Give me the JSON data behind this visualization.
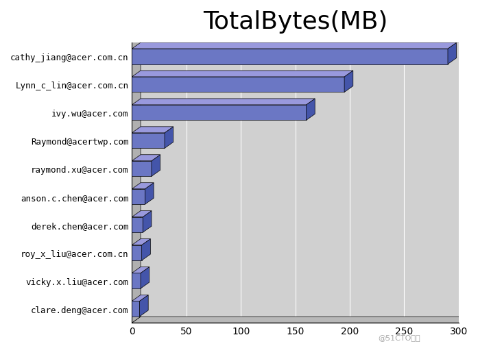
{
  "title": "TotalBytes(MB)",
  "categories": [
    "cathy_jiang@acer.com.cn",
    "Lynn_c_lin@acer.com.cn",
    "ivy.wu@acer.com",
    "Raymond@acertwp.com",
    "raymond.xu@acer.com",
    "anson.c.chen@acer.com",
    "derek.chen@acer.com",
    "roy_x_liu@acer.com.cn",
    "vicky.x.liu@acer.com",
    "clare.deng@acer.com"
  ],
  "values": [
    290,
    195,
    160,
    30,
    18,
    12,
    10,
    9,
    8,
    7
  ],
  "xlim": [
    0,
    300
  ],
  "xticks": [
    0,
    50,
    100,
    150,
    200,
    250,
    300
  ],
  "bar_face_color": "#6b77c4",
  "bar_top_color": "#9999dd",
  "bar_side_color": "#4455aa",
  "background_color": "#f0f0f0",
  "grid_back_color": "#c8c8c8",
  "title_fontsize": 26,
  "label_fontsize": 9,
  "tick_fontsize": 10,
  "depth": 0.35,
  "bar_height": 0.55
}
